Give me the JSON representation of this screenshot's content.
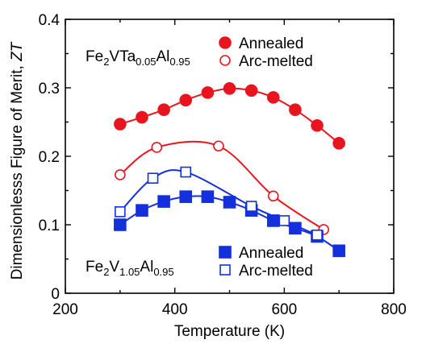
{
  "chart_data": {
    "type": "scatter",
    "xlabel": "Temperature  (K)",
    "ylabel": "Dimensionlesss Figure of Merit, ZT",
    "ylabel_main": "Dimensionlesss Figure of Merit, ",
    "ylabel_italic": "ZT",
    "xlim": [
      200,
      800
    ],
    "ylim": [
      0,
      0.4
    ],
    "x_ticks": [
      200,
      400,
      600,
      800
    ],
    "x_tick_labels": [
      "200",
      "400",
      "600",
      "800"
    ],
    "y_ticks": [
      0,
      0.1,
      0.2,
      0.3,
      0.4
    ],
    "y_tick_labels": [
      "0",
      "0.1",
      "0.2",
      "0.3",
      "0.4"
    ],
    "grid": false,
    "groups": [
      {
        "formula": [
          {
            "text": "Fe",
            "sub": false
          },
          {
            "text": "2",
            "sub": true
          },
          {
            "text": "VTa",
            "sub": false
          },
          {
            "text": "0.05",
            "sub": true
          },
          {
            "text": "Al",
            "sub": false
          },
          {
            "text": "0.95",
            "sub": true
          }
        ],
        "formula_position": "top-left",
        "legend_position": "top-right",
        "color": "#e8141e",
        "marker": "circle",
        "series": [
          {
            "name": "Annealed",
            "filled": true,
            "x": [
              300,
              340,
              380,
              420,
              460,
              500,
              540,
              580,
              620,
              660,
              700
            ],
            "y": [
              0.247,
              0.257,
              0.268,
              0.282,
              0.293,
              0.299,
              0.296,
              0.286,
              0.268,
              0.245,
              0.219
            ]
          },
          {
            "name": "Arc-melted",
            "filled": false,
            "x": [
              300,
              367,
              480,
              580,
              672
            ],
            "y": [
              0.173,
              0.213,
              0.215,
              0.142,
              0.093
            ]
          }
        ]
      },
      {
        "formula": [
          {
            "text": "Fe",
            "sub": false
          },
          {
            "text": "2",
            "sub": true
          },
          {
            "text": "V",
            "sub": false
          },
          {
            "text": "1.05",
            "sub": true
          },
          {
            "text": "Al",
            "sub": false
          },
          {
            "text": "0.95",
            "sub": true
          }
        ],
        "formula_position": "bottom-left",
        "legend_position": "bottom-right",
        "color": "#1430dc",
        "marker": "square",
        "series": [
          {
            "name": "Annealed",
            "filled": true,
            "x": [
              300,
              340,
              380,
              420,
              460,
              500,
              540,
              580,
              620,
              660,
              700
            ],
            "y": [
              0.1,
              0.121,
              0.134,
              0.141,
              0.141,
              0.133,
              0.121,
              0.106,
              0.095,
              0.083,
              0.062
            ]
          },
          {
            "name": "Arc-melted",
            "filled": false,
            "x": [
              300,
              360,
              420,
              540,
              600,
              660
            ],
            "y": [
              0.119,
              0.168,
              0.177,
              0.127,
              0.106,
              0.085
            ]
          }
        ]
      }
    ]
  }
}
